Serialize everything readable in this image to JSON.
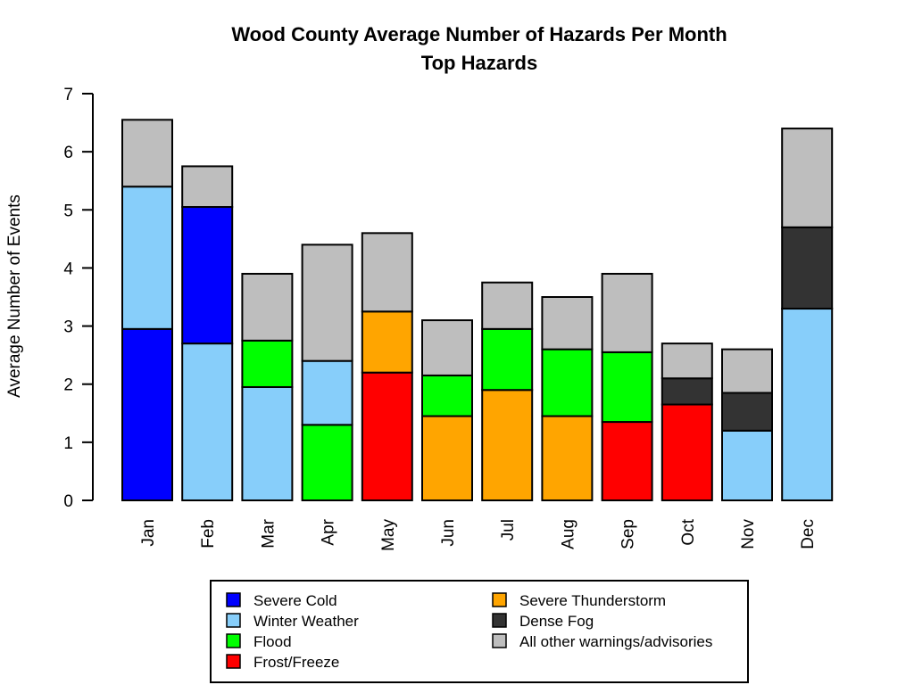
{
  "chart_data": {
    "type": "bar",
    "stacked": true,
    "title": "Wood County Average Number of Hazards Per Month",
    "subtitle": "Top Hazards",
    "xlabel": "",
    "ylabel": "Average Number of Events",
    "ylim": [
      0,
      7
    ],
    "yticks": [
      "0",
      "1",
      "2",
      "3",
      "4",
      "5",
      "6",
      "7"
    ],
    "grid": false,
    "legend_position": "bottom",
    "categories": [
      "Jan",
      "Feb",
      "Mar",
      "Apr",
      "May",
      "Jun",
      "Jul",
      "Aug",
      "Sep",
      "Oct",
      "Nov",
      "Dec"
    ],
    "series": [
      {
        "name": "Severe Cold",
        "color": "#0000ff",
        "values": [
          2.95,
          2.35,
          0,
          0,
          0,
          0,
          0,
          0,
          0,
          0,
          0,
          0
        ]
      },
      {
        "name": "Winter Weather",
        "color": "#87cefa",
        "values": [
          2.45,
          2.7,
          1.95,
          1.1,
          0,
          0,
          0,
          0,
          0,
          0,
          1.2,
          3.3
        ]
      },
      {
        "name": "Flood",
        "color": "#00ff00",
        "values": [
          0,
          0,
          0.8,
          1.3,
          0,
          0.7,
          1.05,
          1.15,
          1.2,
          0,
          0,
          0
        ]
      },
      {
        "name": "Frost/Freeze",
        "color": "#ff0000",
        "values": [
          0,
          0,
          0,
          0,
          2.2,
          0,
          0,
          0,
          1.35,
          1.65,
          0,
          0
        ]
      },
      {
        "name": "Severe Thunderstorm",
        "color": "#ffa500",
        "values": [
          0,
          0,
          0,
          0,
          1.05,
          1.45,
          1.9,
          1.45,
          0,
          0,
          0,
          0
        ]
      },
      {
        "name": "Dense Fog",
        "color": "#333333",
        "values": [
          0,
          0,
          0,
          0,
          0,
          0,
          0,
          0,
          0,
          0.45,
          0.65,
          1.4
        ]
      },
      {
        "name": "All other warnings/advisories",
        "color": "#bebebe",
        "values": [
          1.15,
          0.7,
          1.15,
          2.0,
          1.35,
          0.95,
          0.8,
          0.9,
          1.35,
          0.6,
          0.75,
          1.7
        ]
      }
    ],
    "stack_order": [
      [
        "Severe Cold",
        "Winter Weather",
        "All other warnings/advisories"
      ],
      [
        "Winter Weather",
        "Severe Cold",
        "All other warnings/advisories"
      ],
      [
        "Winter Weather",
        "Flood",
        "All other warnings/advisories"
      ],
      [
        "Flood",
        "Winter Weather",
        "All other warnings/advisories"
      ],
      [
        "Frost/Freeze",
        "Severe Thunderstorm",
        "All other warnings/advisories"
      ],
      [
        "Severe Thunderstorm",
        "Flood",
        "All other warnings/advisories"
      ],
      [
        "Severe Thunderstorm",
        "Flood",
        "All other warnings/advisories"
      ],
      [
        "Severe Thunderstorm",
        "Flood",
        "All other warnings/advisories"
      ],
      [
        "Frost/Freeze",
        "Flood",
        "All other warnings/advisories"
      ],
      [
        "Frost/Freeze",
        "Dense Fog",
        "All other warnings/advisories"
      ],
      [
        "Winter Weather",
        "Dense Fog",
        "All other warnings/advisories"
      ],
      [
        "Winter Weather",
        "Dense Fog",
        "All other warnings/advisories"
      ]
    ],
    "legend_columns": [
      [
        "Severe Cold",
        "Winter Weather",
        "Flood",
        "Frost/Freeze"
      ],
      [
        "Severe Thunderstorm",
        "Dense Fog",
        "All other warnings/advisories"
      ]
    ]
  }
}
